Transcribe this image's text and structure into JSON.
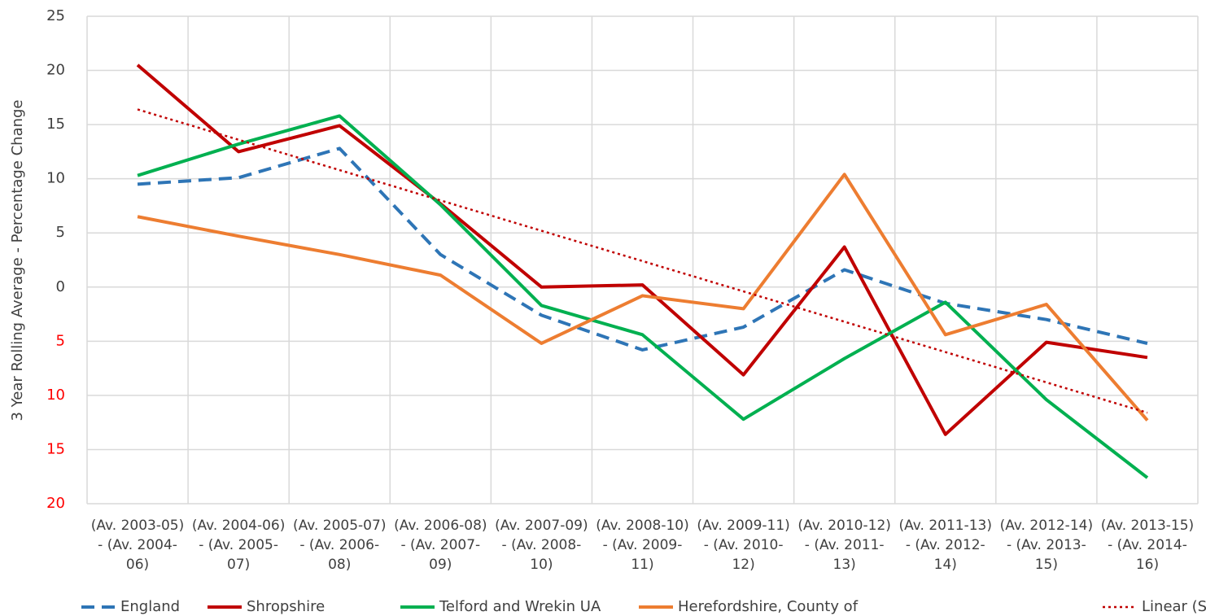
{
  "chart_data": {
    "type": "line",
    "y_label": "3 Year Rolling Average - Percentage Change",
    "categories": [
      "(Av. 2003-05) - (Av. 2004-06)",
      "(Av. 2004-06) - (Av. 2005-07)",
      "(Av. 2005-07) - (Av. 2006-08)",
      "(Av. 2006-08) - (Av. 2007-09)",
      "(Av. 2007-09) - (Av. 2008-10)",
      "(Av. 2008-10) - (Av. 2009-11)",
      "(Av. 2009-11) - (Av. 2010-12)",
      "(Av. 2010-12) - (Av. 2011-13)",
      "(Av. 2011-13) - (Av. 2012-14)",
      "(Av. 2012-14) - (Av. 2013-15)",
      "(Av. 2013-15) - (Av. 2014-16)"
    ],
    "series": [
      {
        "name": "England",
        "color": "#2e75b6",
        "dash": "dashed",
        "values": [
          9.5,
          10.1,
          12.8,
          3.0,
          -2.6,
          -5.8,
          -3.7,
          1.6,
          -1.5,
          -3.0,
          -5.2
        ]
      },
      {
        "name": "Shropshire",
        "color": "#c00000",
        "dash": "solid",
        "values": [
          20.5,
          12.5,
          14.9,
          7.7,
          0,
          0.2,
          -8.1,
          3.7,
          -13.6,
          -5.1,
          -6.5
        ]
      },
      {
        "name": "Telford and Wrekin UA",
        "color": "#00b050",
        "dash": "solid",
        "values": [
          10.3,
          13.2,
          15.8,
          7.6,
          -1.7,
          -4.4,
          -12.2,
          -6.6,
          -1.4,
          -10.4,
          -17.6
        ]
      },
      {
        "name": "Herefordshire, County of",
        "color": "#ed7d31",
        "dash": "solid",
        "values": [
          6.5,
          4.7,
          3.0,
          1.1,
          -5.2,
          -0.8,
          -2.0,
          10.4,
          -4.4,
          -1.6,
          -12.3
        ]
      },
      {
        "name": "Linear (Shropshire)",
        "color": "#c00000",
        "dash": "dotted",
        "values": [
          16.4,
          13.6,
          10.8,
          8.0,
          5.2,
          2.4,
          -0.4,
          -3.2,
          -6.0,
          -8.8,
          -11.6
        ]
      }
    ],
    "ylim": [
      -20,
      25
    ],
    "yticks": [
      25,
      20,
      15,
      10,
      5,
      0,
      {
        "value": -5,
        "label": "5"
      },
      {
        "value": -10,
        "label": "10"
      },
      {
        "value": -15,
        "label": "15"
      },
      {
        "value": -20,
        "label": "20"
      }
    ],
    "negative_tick_color": "#ff0000",
    "grid": true,
    "legend": "bottom"
  }
}
